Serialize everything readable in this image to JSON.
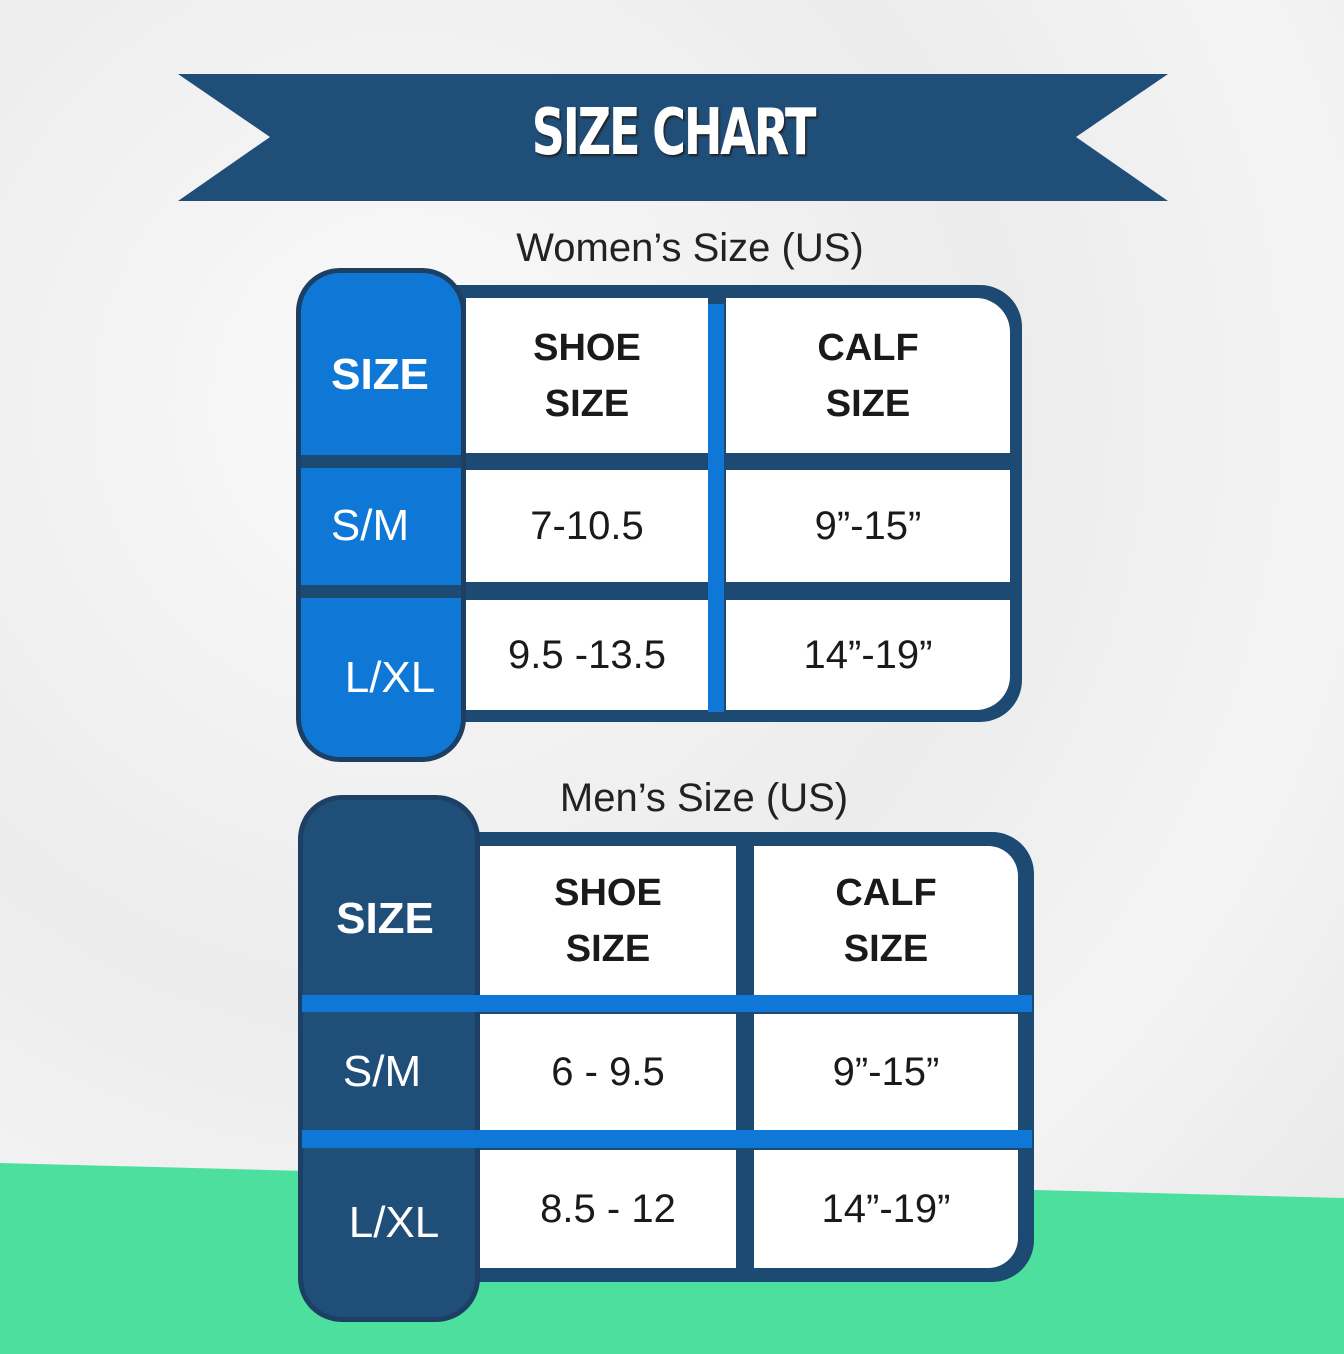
{
  "title": "SIZE CHART",
  "colors": {
    "navy": "#1d4a73",
    "blue": "#0f78d6",
    "green": "#4ddf9e"
  },
  "columns": {
    "size": "SIZE",
    "shoe_l1": "SHOE",
    "shoe_l2": "SIZE",
    "calf_l1": "CALF",
    "calf_l2": "SIZE"
  },
  "women": {
    "heading": "Women’s Size (US)",
    "rows": [
      {
        "size": "S/M",
        "shoe": "7-10.5",
        "calf": "9”-15”"
      },
      {
        "size": "L/XL",
        "shoe": "9.5 -13.5",
        "calf": "14”-19”"
      }
    ]
  },
  "men": {
    "heading": "Men’s Size (US)",
    "rows": [
      {
        "size": "S/M",
        "shoe": "6 - 9.5",
        "calf": "9”-15”"
      },
      {
        "size": "L/XL",
        "shoe": "8.5 - 12",
        "calf": "14”-19”"
      }
    ]
  }
}
